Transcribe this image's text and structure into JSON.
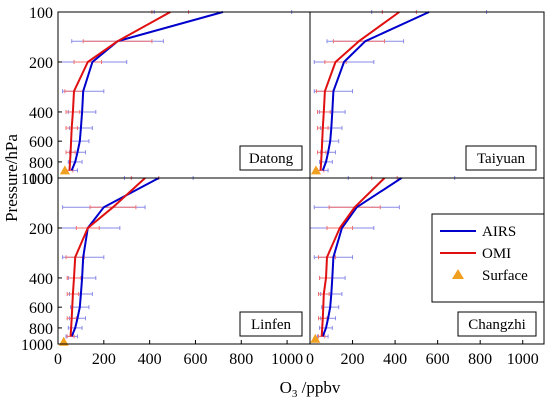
{
  "chart_data": {
    "type": "line",
    "ylabel": "Pressure/hPa",
    "xlabel": "O3 /ppbv",
    "xlabel_main": "O",
    "xlabel_sub": "3",
    "xlabel_unit": " /ppbv",
    "x_range": [
      0,
      1100
    ],
    "y_range": [
      100,
      1000
    ],
    "y_scale": "log",
    "x_ticks": [
      0,
      200,
      400,
      600,
      800,
      1000
    ],
    "y_ticks": [
      100,
      200,
      400,
      600,
      800,
      1000
    ],
    "colors": {
      "AIRS": "#0000cc",
      "OMI": "#e01010",
      "Surface": "#f0a020",
      "AIRS_err": "#8a8ae8",
      "OMI_err": "#f07070"
    },
    "legend": {
      "position": "right-middle",
      "entries": [
        {
          "name": "AIRS",
          "marker": "line",
          "color": "#0000cc"
        },
        {
          "name": "OMI",
          "marker": "line",
          "color": "#e01010"
        },
        {
          "name": "Surface",
          "marker": "triangle",
          "color": "#f0a020"
        }
      ]
    },
    "panels": [
      {
        "station": "Datong",
        "series": [
          {
            "name": "AIRS",
            "pressure": [
              100,
              150,
              200,
              300,
              400,
              500,
              600,
              700,
              800,
              900
            ],
            "ozone": [
              720,
              260,
              150,
              110,
              105,
              100,
              95,
              85,
              75,
              60
            ],
            "error": [
              300,
              200,
              150,
              90,
              60,
              50,
              40,
              35,
              30,
              25
            ]
          },
          {
            "name": "OMI",
            "pressure": [
              100,
              150,
              200,
              300,
              400,
              500,
              700,
              900
            ],
            "ozone": [
              490,
              260,
              130,
              70,
              65,
              60,
              55,
              50
            ],
            "error": [
              80,
              150,
              60,
              40,
              30,
              25,
              20,
              15
            ]
          }
        ],
        "surface": {
          "pressure": 900,
          "ozone": 30
        }
      },
      {
        "station": "Taiyuan",
        "series": [
          {
            "name": "AIRS",
            "pressure": [
              100,
              150,
              200,
              300,
              400,
              500,
              600,
              700,
              800,
              900
            ],
            "ozone": [
              560,
              260,
              160,
              110,
              105,
              100,
              95,
              85,
              75,
              60
            ],
            "error": [
              270,
              180,
              140,
              90,
              60,
              50,
              40,
              35,
              30,
              25
            ]
          },
          {
            "name": "OMI",
            "pressure": [
              100,
              150,
              200,
              300,
              400,
              500,
              700,
              900
            ],
            "ozone": [
              420,
              230,
              120,
              70,
              65,
              60,
              55,
              50
            ],
            "error": [
              80,
              120,
              50,
              40,
              30,
              25,
              20,
              15
            ]
          }
        ],
        "surface": {
          "pressure": 900,
          "ozone": 28
        }
      },
      {
        "station": "Linfen",
        "series": [
          {
            "name": "AIRS",
            "pressure": [
              100,
              150,
              200,
              300,
              400,
              500,
              600,
              700,
              800,
              900
            ],
            "ozone": [
              440,
              200,
              130,
              110,
              105,
              100,
              95,
              85,
              75,
              60
            ],
            "error": [
              150,
              180,
              140,
              90,
              60,
              50,
              40,
              35,
              30,
              25
            ]
          },
          {
            "name": "OMI",
            "pressure": [
              100,
              150,
              200,
              300,
              400,
              500,
              700,
              900
            ],
            "ozone": [
              380,
              240,
              130,
              75,
              70,
              65,
              60,
              55
            ],
            "error": [
              60,
              100,
              50,
              40,
              30,
              25,
              20,
              15
            ]
          }
        ],
        "surface": {
          "pressure": 970,
          "ozone": 25
        }
      },
      {
        "station": "Changzhi",
        "series": [
          {
            "name": "AIRS",
            "pressure": [
              100,
              150,
              200,
              300,
              400,
              500,
              600,
              700,
              800,
              900
            ],
            "ozone": [
              430,
              220,
              150,
              110,
              105,
              100,
              95,
              85,
              75,
              60
            ],
            "error": [
              250,
              200,
              150,
              90,
              60,
              50,
              40,
              35,
              30,
              25
            ]
          },
          {
            "name": "OMI",
            "pressure": [
              100,
              150,
              200,
              300,
              400,
              500,
              700,
              900
            ],
            "ozone": [
              350,
              210,
              140,
              80,
              75,
              65,
              60,
              55
            ],
            "error": [
              60,
              120,
              60,
              40,
              30,
              25,
              20,
              15
            ]
          }
        ],
        "surface": {
          "pressure": 930,
          "ozone": 25
        }
      }
    ]
  }
}
